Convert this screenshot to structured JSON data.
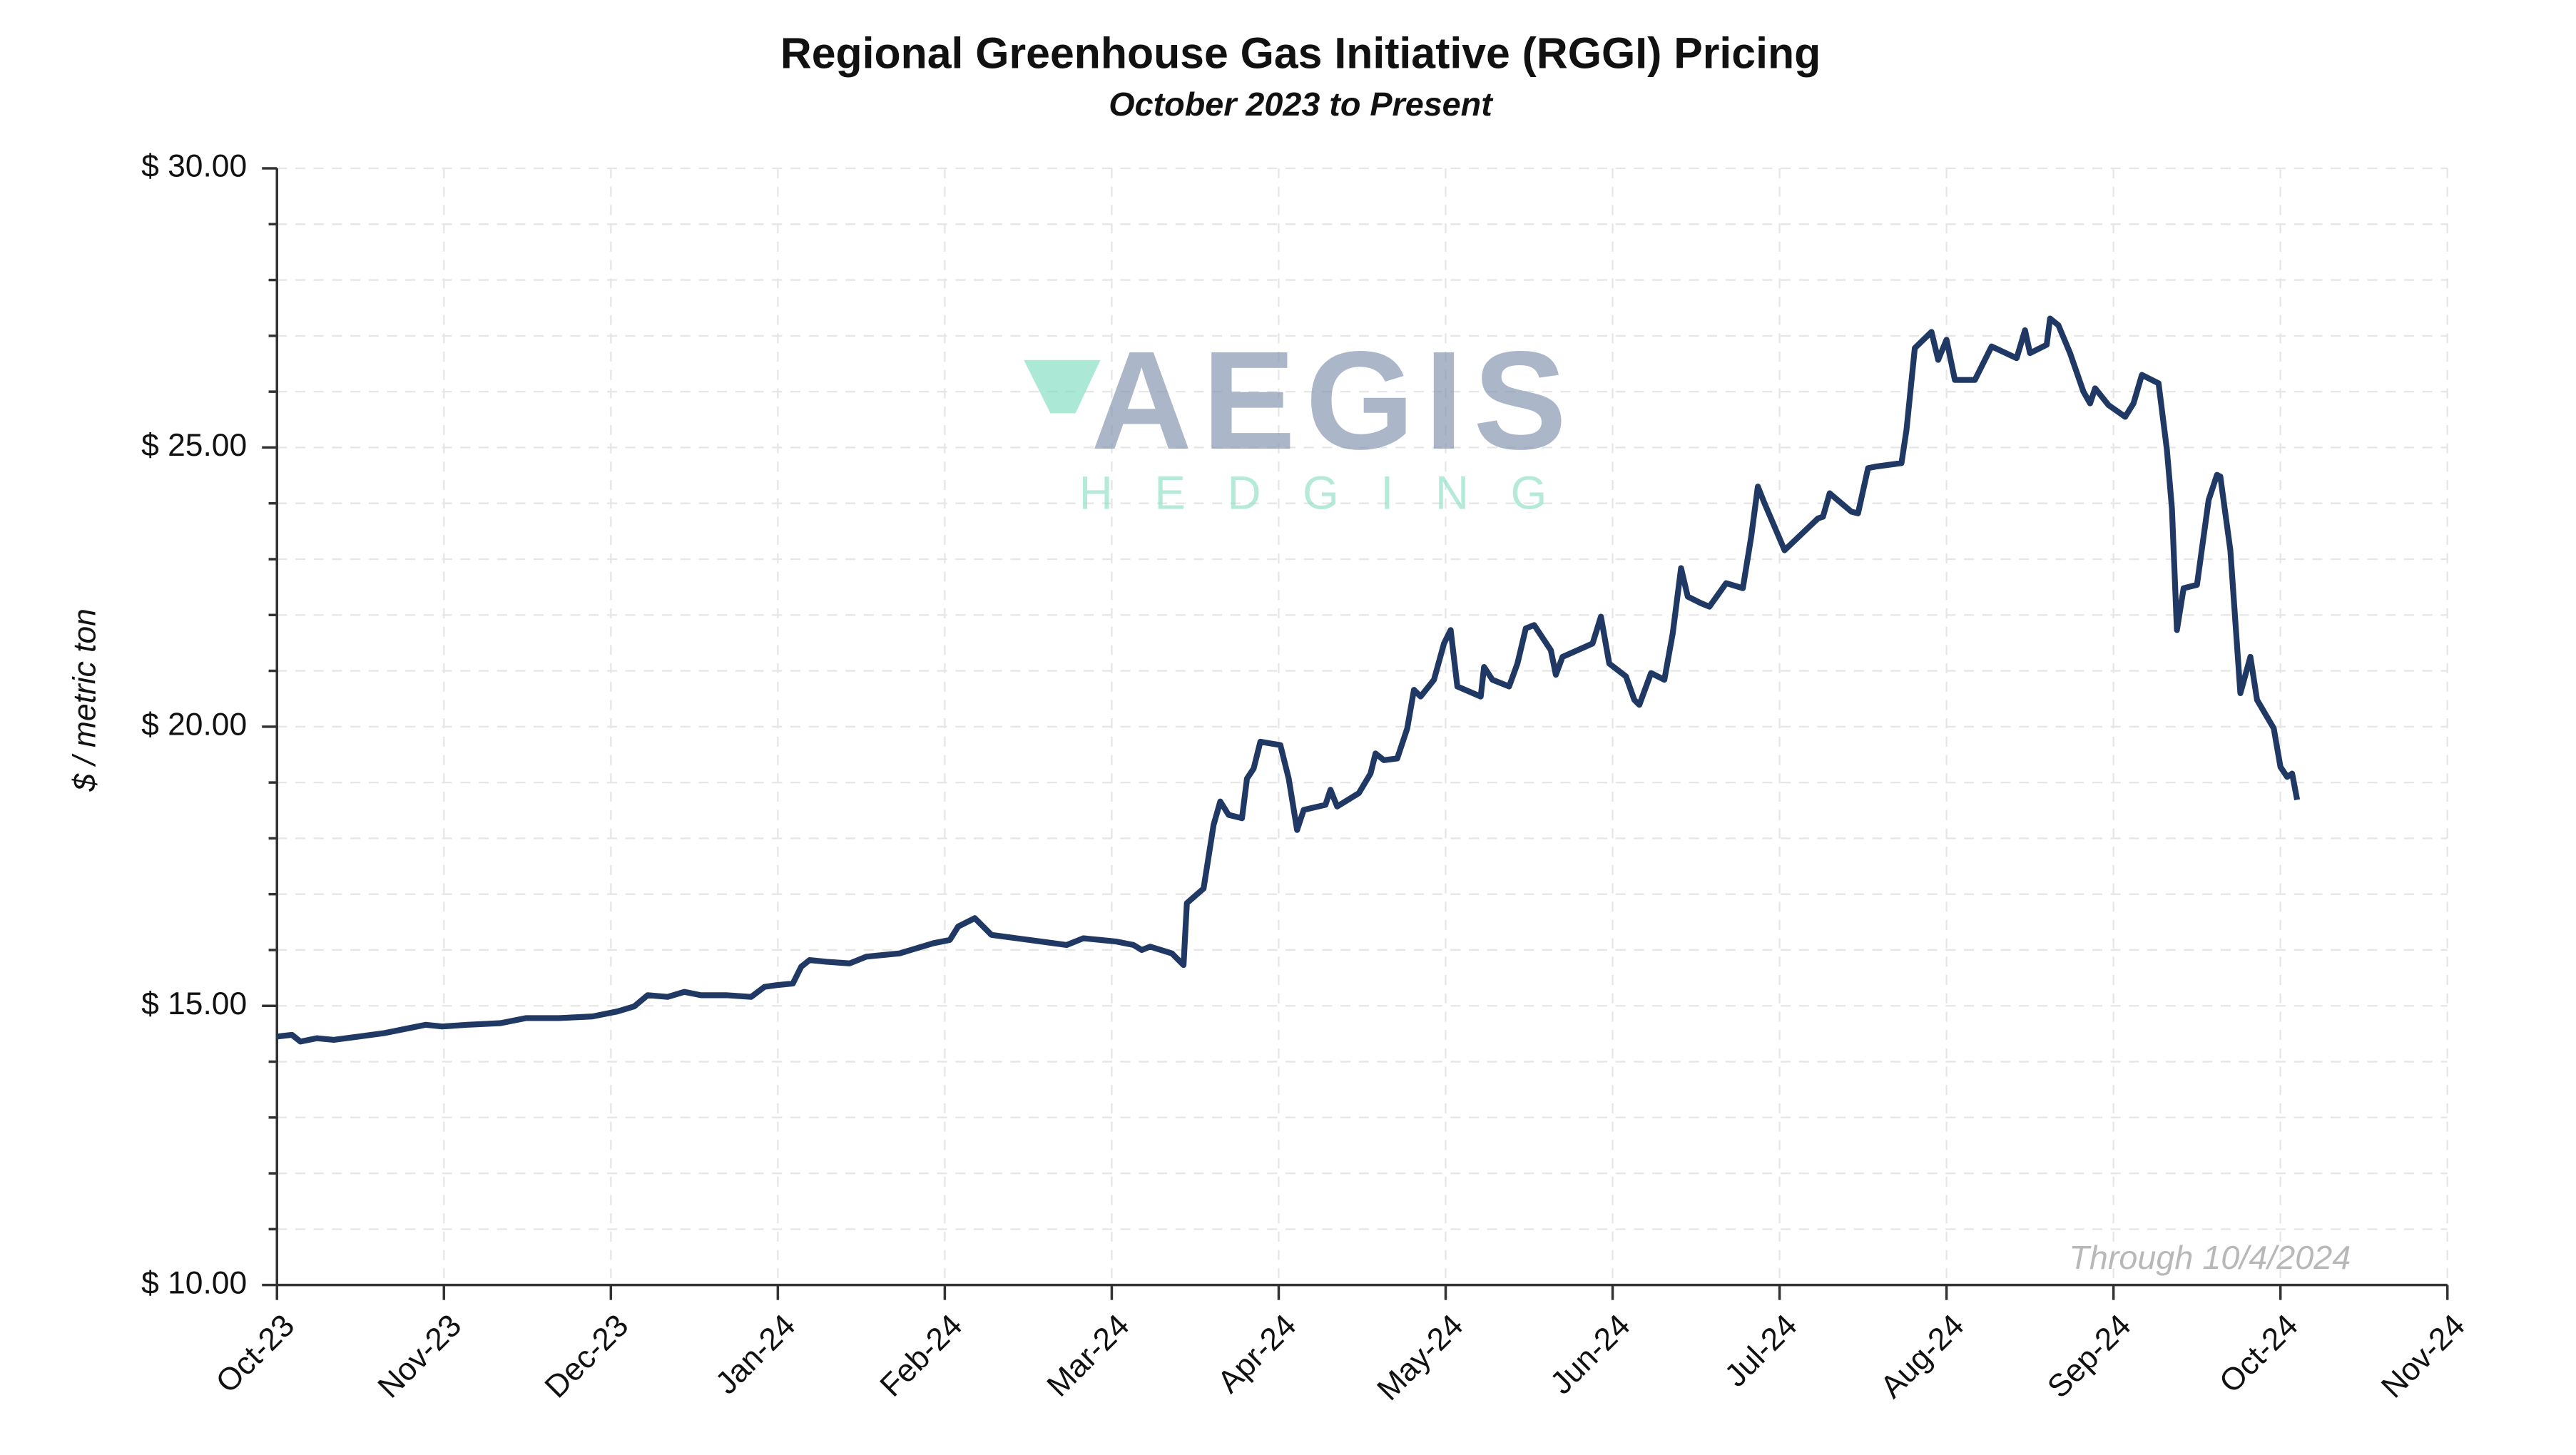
{
  "chart_data": {
    "type": "line",
    "title": "Regional Greenhouse Gas Initiative (RGGI) Pricing",
    "subtitle": "October 2023 to Present",
    "y_label": "$ / metric ton",
    "annotation": "Through 10/4/2024",
    "watermark": {
      "title": "AEGIS",
      "subtitle": "HEDGING"
    },
    "grid": true,
    "xlim": [
      0,
      13
    ],
    "xticks": [
      {
        "value": 0,
        "label": "Oct-23"
      },
      {
        "value": 1,
        "label": "Nov-23"
      },
      {
        "value": 2,
        "label": "Dec-23"
      },
      {
        "value": 3,
        "label": "Jan-24"
      },
      {
        "value": 4,
        "label": "Feb-24"
      },
      {
        "value": 5,
        "label": "Mar-24"
      },
      {
        "value": 6,
        "label": "Apr-24"
      },
      {
        "value": 7,
        "label": "May-24"
      },
      {
        "value": 8,
        "label": "Jun-24"
      },
      {
        "value": 9,
        "label": "Jul-24"
      },
      {
        "value": 10,
        "label": "Aug-24"
      },
      {
        "value": 11,
        "label": "Sep-24"
      },
      {
        "value": 12,
        "label": "Oct-24"
      },
      {
        "value": 13,
        "label": "Nov-24"
      }
    ],
    "ylim": [
      10,
      30
    ],
    "yticks": [
      {
        "value": 10,
        "label": "$ 10.00"
      },
      {
        "value": 15,
        "label": "$ 15.00"
      },
      {
        "value": 20,
        "label": "$ 20.00"
      },
      {
        "value": 25,
        "label": "$ 25.00"
      },
      {
        "value": 30,
        "label": "$ 30.00"
      }
    ],
    "yminorticks": [
      11,
      12,
      13,
      14,
      16,
      17,
      18,
      19,
      21,
      22,
      23,
      24,
      26,
      27,
      28,
      29
    ],
    "series": [
      {
        "name": "RGGI",
        "color": "#1f3864",
        "x": [
          0,
          0.09,
          0.14,
          0.24,
          0.34,
          0.49,
          0.64,
          0.79,
          0.89,
          0.99,
          1.14,
          1.34,
          1.49,
          1.69,
          1.89,
          1.94,
          2.04,
          2.14,
          2.22,
          2.34,
          2.44,
          2.54,
          2.69,
          2.84,
          2.92,
          2.99,
          3.09,
          3.14,
          3.19,
          3.29,
          3.43,
          3.53,
          3.73,
          3.93,
          4.03,
          4.08,
          4.18,
          4.28,
          4.43,
          4.58,
          4.73,
          4.83,
          4.93,
          5.03,
          5.13,
          5.18,
          5.23,
          5.36,
          5.43,
          5.45,
          5.55,
          5.61,
          5.65,
          5.7,
          5.78,
          5.81,
          5.85,
          5.89,
          6.01,
          6.06,
          6.11,
          6.15,
          6.28,
          6.31,
          6.35,
          6.48,
          6.55,
          6.58,
          6.63,
          6.71,
          6.77,
          6.81,
          6.85,
          6.93,
          6.99,
          7.03,
          7.07,
          7.21,
          7.23,
          7.28,
          7.38,
          7.43,
          7.48,
          7.53,
          7.63,
          7.66,
          7.7,
          7.88,
          7.93,
          7.98,
          8.08,
          8.13,
          8.16,
          8.23,
          8.31,
          8.36,
          8.41,
          8.45,
          8.53,
          8.58,
          8.68,
          8.78,
          8.83,
          8.87,
          8.91,
          9.03,
          9.23,
          9.26,
          9.3,
          9.43,
          9.47,
          9.53,
          9.58,
          9.73,
          9.76,
          9.81,
          9.91,
          9.95,
          10.0,
          10.05,
          10.17,
          10.27,
          10.42,
          10.47,
          10.5,
          10.6,
          10.62,
          10.67,
          10.74,
          10.82,
          10.86,
          10.89,
          10.97,
          11.07,
          11.12,
          11.17,
          11.27,
          11.32,
          11.35,
          11.38,
          11.42,
          11.5,
          11.57,
          11.62,
          11.64,
          11.7,
          11.76,
          11.82,
          11.86,
          11.96,
          12.0,
          12.04,
          12.07,
          12.1
        ],
        "values": [
          14.45,
          14.48,
          14.36,
          14.42,
          14.39,
          14.45,
          14.51,
          14.6,
          14.66,
          14.63,
          14.66,
          14.69,
          14.78,
          14.78,
          14.81,
          14.84,
          14.9,
          14.99,
          15.19,
          15.16,
          15.25,
          15.19,
          15.19,
          15.16,
          15.34,
          15.37,
          15.4,
          15.7,
          15.82,
          15.79,
          15.76,
          15.88,
          15.94,
          16.12,
          16.18,
          16.42,
          16.57,
          16.27,
          16.21,
          16.15,
          16.09,
          16.21,
          16.18,
          16.15,
          16.09,
          16.0,
          16.06,
          15.94,
          15.73,
          16.84,
          17.1,
          18.24,
          18.66,
          18.42,
          18.36,
          19.07,
          19.25,
          19.73,
          19.67,
          19.07,
          18.15,
          18.51,
          18.6,
          18.87,
          18.57,
          18.81,
          19.16,
          19.52,
          19.4,
          19.43,
          19.97,
          20.66,
          20.54,
          20.84,
          21.49,
          21.73,
          20.72,
          20.54,
          21.07,
          20.84,
          20.72,
          21.13,
          21.76,
          21.82,
          21.37,
          20.93,
          21.25,
          21.49,
          21.97,
          21.13,
          20.9,
          20.48,
          20.39,
          20.96,
          20.84,
          21.67,
          22.84,
          22.33,
          22.21,
          22.15,
          22.57,
          22.48,
          23.4,
          24.3,
          24.0,
          23.16,
          23.73,
          23.76,
          24.18,
          23.85,
          23.82,
          24.63,
          24.66,
          24.72,
          25.31,
          26.78,
          27.07,
          26.57,
          26.93,
          26.21,
          26.21,
          26.81,
          26.6,
          27.1,
          26.69,
          26.84,
          27.31,
          27.19,
          26.69,
          26.0,
          25.79,
          26.06,
          25.76,
          25.55,
          25.79,
          26.3,
          26.15,
          24.96,
          23.91,
          21.73,
          22.48,
          22.54,
          24.06,
          24.51,
          24.48,
          23.16,
          20.6,
          21.25,
          20.48,
          19.97,
          19.28,
          19.1,
          19.16,
          18.69
        ]
      }
    ]
  }
}
